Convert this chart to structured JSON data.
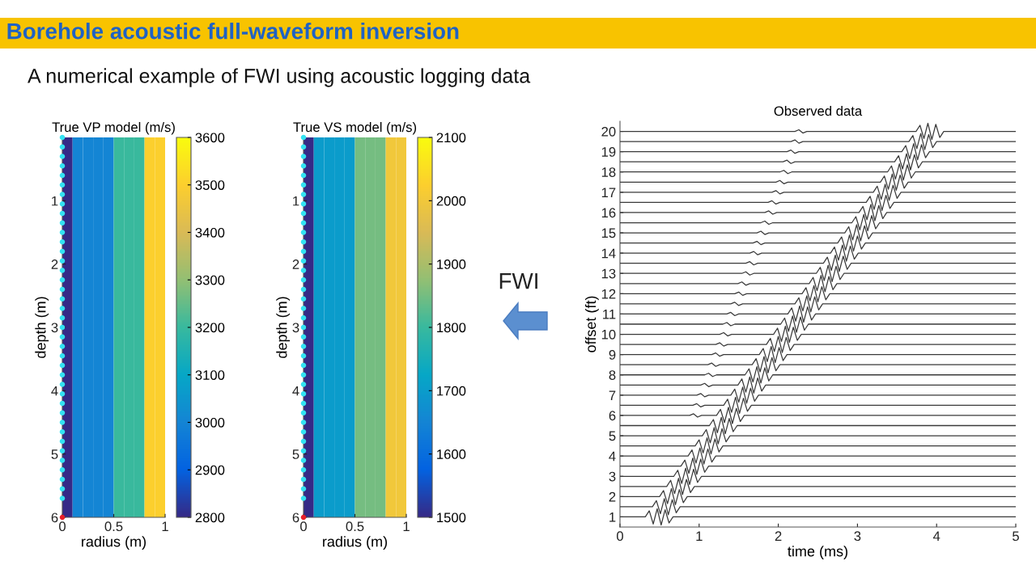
{
  "chart_data": [
    {
      "type": "other",
      "title": "Borehole acoustic full-waveform inversion",
      "subtitle": "A numerical example of FWI using acoustic logging data",
      "annotations": [
        "FWI"
      ]
    },
    {
      "type": "heatmap",
      "title": "True VP model (m/s)",
      "xlabel": "radius (m)",
      "ylabel": "depth (m)",
      "x": [
        0.05,
        0.15,
        0.25,
        0.35,
        0.45,
        0.55,
        0.65,
        0.75,
        0.85,
        0.95
      ],
      "cells": [
        [
          2800,
          3000,
          3000,
          3000,
          3000,
          3200,
          3200,
          3200,
          3500,
          3500
        ]
      ],
      "clim": [
        2800,
        3600
      ],
      "cticks": [
        2800,
        2900,
        3000,
        3100,
        3200,
        3300,
        3400,
        3500,
        3600
      ],
      "xlim": [
        0,
        1
      ],
      "ylim": [
        6,
        0
      ],
      "xticks": [
        0,
        0.5,
        1
      ],
      "yticks": [
        1,
        2,
        3,
        4,
        5,
        6
      ],
      "marker": "circle",
      "series": [
        {
          "type": "scatter",
          "color": "#33e3f2",
          "x": [
            0,
            0,
            0,
            0,
            0,
            0,
            0,
            0,
            0,
            0,
            0,
            0,
            0,
            0,
            0,
            0,
            0,
            0,
            0,
            0,
            0,
            0,
            0,
            0,
            0,
            0,
            0,
            0,
            0,
            0,
            0,
            0,
            0,
            0,
            0,
            0,
            0,
            0,
            0
          ],
          "values": [
            0,
            0.15,
            0.3,
            0.45,
            0.6,
            0.75,
            0.9,
            1.05,
            1.2,
            1.35,
            1.5,
            1.65,
            1.8,
            1.95,
            2.1,
            2.25,
            2.4,
            2.55,
            2.7,
            2.85,
            3,
            3.15,
            3.3,
            3.45,
            3.6,
            3.75,
            3.9,
            4.05,
            4.2,
            4.35,
            4.5,
            4.65,
            4.8,
            4.95,
            5.1,
            5.25,
            5.4,
            5.55,
            5.7
          ]
        },
        {
          "type": "scatter",
          "color": "#e8202a",
          "x": [
            0
          ],
          "values": [
            6
          ]
        }
      ]
    },
    {
      "type": "heatmap",
      "title": "True VS model (m/s)",
      "xlabel": "radius (m)",
      "ylabel": "depth (m)",
      "x": [
        0.05,
        0.15,
        0.25,
        0.35,
        0.45,
        0.55,
        0.65,
        0.75,
        0.85,
        0.95
      ],
      "cells": [
        [
          1500,
          1700,
          1700,
          1700,
          1700,
          1850,
          1850,
          1850,
          2000,
          2000
        ]
      ],
      "clim": [
        1500,
        2100
      ],
      "cticks": [
        1500,
        1600,
        1700,
        1800,
        1900,
        2000,
        2100
      ],
      "xlim": [
        0,
        1
      ],
      "ylim": [
        6,
        0
      ],
      "xticks": [
        0,
        0.5,
        1
      ],
      "yticks": [
        1,
        2,
        3,
        4,
        5,
        6
      ],
      "marker": "circle",
      "series": [
        {
          "type": "scatter",
          "color": "#33e3f2",
          "x": [
            0,
            0,
            0,
            0,
            0,
            0,
            0,
            0,
            0,
            0,
            0,
            0,
            0,
            0,
            0,
            0,
            0,
            0,
            0,
            0,
            0,
            0,
            0,
            0,
            0,
            0,
            0,
            0,
            0,
            0,
            0,
            0,
            0,
            0,
            0,
            0,
            0,
            0,
            0
          ],
          "values": [
            0,
            0.15,
            0.3,
            0.45,
            0.6,
            0.75,
            0.9,
            1.05,
            1.2,
            1.35,
            1.5,
            1.65,
            1.8,
            1.95,
            2.1,
            2.25,
            2.4,
            2.55,
            2.7,
            2.85,
            3,
            3.15,
            3.3,
            3.45,
            3.6,
            3.75,
            3.9,
            4.05,
            4.2,
            4.35,
            4.5,
            4.65,
            4.8,
            4.95,
            5.1,
            5.25,
            5.4,
            5.55,
            5.7
          ]
        },
        {
          "type": "scatter",
          "color": "#e8202a",
          "x": [
            0
          ],
          "values": [
            6
          ]
        }
      ]
    },
    {
      "type": "line",
      "title": "Observed data",
      "xlabel": "time (ms)",
      "ylabel": "offset (ft)",
      "xlim": [
        0,
        5
      ],
      "ylim": [
        0.5,
        20.5
      ],
      "xticks": [
        0,
        1,
        2,
        3,
        4,
        5
      ],
      "yticks": [
        1,
        2,
        3,
        4,
        5,
        6,
        7,
        8,
        9,
        10,
        11,
        12,
        13,
        14,
        15,
        16,
        17,
        18,
        19,
        20
      ],
      "color": "#3a3a3a",
      "marker": "none",
      "line_style": "solid",
      "series": [
        {
          "x": [
            0,
            0.32,
            0.37,
            0.42,
            0.47,
            0.52,
            0.57,
            0.62,
            0.67,
            5
          ],
          "values": [
            1,
            1,
            1.3,
            0.65,
            1.4,
            0.6,
            1.35,
            0.7,
            1,
            1
          ]
        },
        {
          "x": [
            0,
            0.41,
            0.46,
            0.51,
            0.56,
            0.61,
            0.66,
            0.71,
            0.76,
            5
          ],
          "values": [
            1.5,
            1.5,
            1.8,
            1.15,
            1.9,
            1.1,
            1.85,
            1.2,
            1.5,
            1.5
          ]
        },
        {
          "x": [
            0,
            0.5,
            0.55,
            0.6,
            0.65,
            0.7,
            0.75,
            0.8,
            0.85,
            5
          ],
          "values": [
            2,
            2,
            2.3,
            1.65,
            2.4,
            1.6,
            2.35,
            1.7,
            2,
            2
          ]
        },
        {
          "x": [
            0,
            0.59,
            0.64,
            0.69,
            0.74,
            0.79,
            0.84,
            0.89,
            0.94,
            5
          ],
          "values": [
            2.5,
            2.5,
            2.8,
            2.15,
            2.9,
            2.1,
            2.85,
            2.2,
            2.5,
            2.5
          ]
        },
        {
          "x": [
            0,
            0.68,
            0.73,
            0.78,
            0.83,
            0.88,
            0.93,
            0.98,
            1.03,
            5
          ],
          "values": [
            3,
            3,
            3.3,
            2.65,
            3.4,
            2.6,
            3.35,
            2.7,
            3,
            3
          ]
        },
        {
          "x": [
            0,
            0.77,
            0.82,
            0.87,
            0.92,
            0.97,
            1.02,
            1.07,
            1.12,
            5
          ],
          "values": [
            3.5,
            3.5,
            3.8,
            3.15,
            3.9,
            3.1,
            3.85,
            3.2,
            3.5,
            3.5
          ]
        },
        {
          "x": [
            0,
            0.86,
            0.91,
            0.96,
            1.01,
            1.06,
            1.11,
            1.16,
            1.21,
            5
          ],
          "values": [
            4,
            4,
            4.3,
            3.65,
            4.4,
            3.6,
            4.35,
            3.7,
            4,
            4
          ]
        },
        {
          "x": [
            0,
            0.95,
            1,
            1.05,
            1.1,
            1.15,
            1.2,
            1.25,
            1.3,
            5
          ],
          "values": [
            4.5,
            4.5,
            4.8,
            4.15,
            4.9,
            4.1,
            4.85,
            4.2,
            4.5,
            4.5
          ]
        },
        {
          "x": [
            0,
            1.04,
            1.09,
            1.14,
            1.19,
            1.24,
            1.29,
            1.34,
            1.39,
            5
          ],
          "values": [
            5,
            5,
            5.3,
            4.65,
            5.4,
            4.6,
            5.35,
            4.7,
            5,
            5
          ]
        },
        {
          "x": [
            0,
            1.13,
            1.18,
            1.23,
            1.28,
            1.33,
            1.38,
            1.43,
            1.48,
            5
          ],
          "values": [
            5.5,
            5.5,
            5.8,
            5.15,
            5.9,
            5.1,
            5.85,
            5.2,
            5.5,
            5.5
          ]
        },
        {
          "x": [
            0,
            0.88,
            0.93,
            0.98,
            1.03,
            1.22,
            1.27,
            1.32,
            1.37,
            1.42,
            1.47,
            1.52,
            1.57,
            5
          ],
          "values": [
            6,
            6,
            6.08,
            5.92,
            6,
            6,
            6.3,
            5.65,
            6.4,
            5.6,
            6.35,
            5.7,
            6,
            6
          ]
        },
        {
          "x": [
            0,
            0.92,
            0.97,
            1.02,
            1.07,
            1.31,
            1.36,
            1.41,
            1.46,
            1.51,
            1.56,
            1.61,
            1.66,
            5
          ],
          "values": [
            6.5,
            6.5,
            6.58,
            6.42,
            6.5,
            6.5,
            6.8,
            6.15,
            6.9,
            6.1,
            6.85,
            6.2,
            6.5,
            6.5
          ]
        },
        {
          "x": [
            0,
            0.97,
            1.02,
            1.07,
            1.12,
            1.4,
            1.45,
            1.5,
            1.55,
            1.6,
            1.65,
            1.7,
            1.75,
            5
          ],
          "values": [
            7,
            7,
            7.08,
            6.92,
            7,
            7,
            7.3,
            6.65,
            7.4,
            6.6,
            7.35,
            6.7,
            7,
            7
          ]
        },
        {
          "x": [
            0,
            1.02,
            1.07,
            1.12,
            1.17,
            1.49,
            1.54,
            1.59,
            1.64,
            1.69,
            1.74,
            1.79,
            1.84,
            5
          ],
          "values": [
            7.5,
            7.5,
            7.58,
            7.42,
            7.5,
            7.5,
            7.8,
            7.15,
            7.9,
            7.1,
            7.85,
            7.2,
            7.5,
            7.5
          ]
        },
        {
          "x": [
            0,
            1.07,
            1.12,
            1.17,
            1.22,
            1.58,
            1.63,
            1.68,
            1.73,
            1.78,
            1.83,
            1.88,
            1.93,
            5
          ],
          "values": [
            8,
            8,
            8.08,
            7.92,
            8,
            8,
            8.3,
            7.65,
            8.4,
            7.6,
            8.35,
            7.7,
            8,
            8
          ]
        },
        {
          "x": [
            0,
            1.11,
            1.16,
            1.21,
            1.26,
            1.67,
            1.72,
            1.77,
            1.82,
            1.87,
            1.92,
            1.97,
            2.02,
            5
          ],
          "values": [
            8.5,
            8.5,
            8.58,
            8.42,
            8.5,
            8.5,
            8.8,
            8.15,
            8.9,
            8.1,
            8.85,
            8.2,
            8.5,
            8.5
          ]
        },
        {
          "x": [
            0,
            1.16,
            1.21,
            1.26,
            1.31,
            1.76,
            1.81,
            1.86,
            1.91,
            1.96,
            2.01,
            2.06,
            2.11,
            5
          ],
          "values": [
            9,
            9,
            9.08,
            8.92,
            9,
            9,
            9.3,
            8.65,
            9.4,
            8.6,
            9.35,
            8.7,
            9,
            9
          ]
        },
        {
          "x": [
            0,
            1.21,
            1.26,
            1.31,
            1.36,
            1.85,
            1.9,
            1.95,
            2,
            2.05,
            2.1,
            2.15,
            2.2,
            5
          ],
          "values": [
            9.5,
            9.5,
            9.58,
            9.42,
            9.5,
            9.5,
            9.8,
            9.15,
            9.9,
            9.1,
            9.85,
            9.2,
            9.5,
            9.5
          ]
        },
        {
          "x": [
            0,
            1.26,
            1.31,
            1.36,
            1.41,
            1.94,
            1.99,
            2.04,
            2.09,
            2.14,
            2.19,
            2.24,
            2.29,
            5
          ],
          "values": [
            10,
            10,
            10.08,
            9.92,
            10,
            10,
            10.3,
            9.65,
            10.4,
            9.6,
            10.35,
            9.7,
            10,
            10
          ]
        },
        {
          "x": [
            0,
            1.3,
            1.35,
            1.4,
            1.45,
            2.03,
            2.08,
            2.13,
            2.18,
            2.23,
            2.28,
            2.33,
            2.38,
            5
          ],
          "values": [
            10.5,
            10.5,
            10.58,
            10.42,
            10.5,
            10.5,
            10.8,
            10.15,
            10.9,
            10.1,
            10.85,
            10.2,
            10.5,
            10.5
          ]
        },
        {
          "x": [
            0,
            1.35,
            1.4,
            1.45,
            1.5,
            2.12,
            2.17,
            2.22,
            2.27,
            2.32,
            2.37,
            2.42,
            2.47,
            5
          ],
          "values": [
            11,
            11,
            11.08,
            10.92,
            11,
            11,
            11.3,
            10.65,
            11.4,
            10.6,
            11.35,
            10.7,
            11,
            11
          ]
        },
        {
          "x": [
            0,
            1.4,
            1.45,
            1.5,
            1.55,
            2.21,
            2.26,
            2.31,
            2.36,
            2.41,
            2.46,
            2.51,
            2.56,
            5
          ],
          "values": [
            11.5,
            11.5,
            11.58,
            11.42,
            11.5,
            11.5,
            11.8,
            11.15,
            11.9,
            11.1,
            11.85,
            11.2,
            11.5,
            11.5
          ]
        },
        {
          "x": [
            0,
            1.45,
            1.5,
            1.55,
            1.6,
            2.3,
            2.35,
            2.4,
            2.45,
            2.5,
            2.55,
            2.6,
            2.65,
            5
          ],
          "values": [
            12,
            12,
            12.08,
            11.92,
            12,
            12,
            12.3,
            11.65,
            12.4,
            11.6,
            12.35,
            11.7,
            12,
            12
          ]
        },
        {
          "x": [
            0,
            1.49,
            1.54,
            1.59,
            1.64,
            2.39,
            2.44,
            2.49,
            2.54,
            2.59,
            2.64,
            2.69,
            2.74,
            5
          ],
          "values": [
            12.5,
            12.5,
            12.58,
            12.42,
            12.5,
            12.5,
            12.8,
            12.15,
            12.9,
            12.1,
            12.85,
            12.2,
            12.5,
            12.5
          ]
        },
        {
          "x": [
            0,
            1.54,
            1.59,
            1.64,
            1.69,
            2.48,
            2.53,
            2.58,
            2.63,
            2.68,
            2.73,
            2.78,
            2.83,
            5
          ],
          "values": [
            13,
            13,
            13.08,
            12.92,
            13,
            13,
            13.3,
            12.65,
            13.4,
            12.6,
            13.35,
            12.7,
            13,
            13
          ]
        },
        {
          "x": [
            0,
            1.59,
            1.64,
            1.69,
            1.74,
            2.57,
            2.62,
            2.67,
            2.72,
            2.77,
            2.82,
            2.87,
            2.92,
            5
          ],
          "values": [
            13.5,
            13.5,
            13.58,
            13.42,
            13.5,
            13.5,
            13.8,
            13.15,
            13.9,
            13.1,
            13.85,
            13.2,
            13.5,
            13.5
          ]
        },
        {
          "x": [
            0,
            1.64,
            1.69,
            1.74,
            1.79,
            2.66,
            2.71,
            2.76,
            2.81,
            2.86,
            2.91,
            2.96,
            3.01,
            5
          ],
          "values": [
            14,
            14,
            14.08,
            13.92,
            14,
            14,
            14.3,
            13.65,
            14.4,
            13.6,
            14.35,
            13.7,
            14,
            14
          ]
        },
        {
          "x": [
            0,
            1.68,
            1.73,
            1.78,
            1.83,
            2.75,
            2.8,
            2.85,
            2.9,
            2.95,
            3,
            3.05,
            3.1,
            5
          ],
          "values": [
            14.5,
            14.5,
            14.58,
            14.42,
            14.5,
            14.5,
            14.8,
            14.15,
            14.9,
            14.1,
            14.85,
            14.2,
            14.5,
            14.5
          ]
        },
        {
          "x": [
            0,
            1.73,
            1.78,
            1.83,
            1.88,
            2.84,
            2.89,
            2.94,
            2.99,
            3.04,
            3.09,
            3.14,
            3.19,
            5
          ],
          "values": [
            15,
            15,
            15.08,
            14.92,
            15,
            15,
            15.3,
            14.65,
            15.4,
            14.6,
            15.35,
            14.7,
            15,
            15
          ]
        },
        {
          "x": [
            0,
            1.78,
            1.83,
            1.88,
            1.93,
            2.93,
            2.98,
            3.03,
            3.08,
            3.13,
            3.18,
            3.23,
            3.28,
            5
          ],
          "values": [
            15.5,
            15.5,
            15.58,
            15.42,
            15.5,
            15.5,
            15.8,
            15.15,
            15.9,
            15.1,
            15.85,
            15.2,
            15.5,
            15.5
          ]
        },
        {
          "x": [
            0,
            1.83,
            1.88,
            1.93,
            1.98,
            3.02,
            3.07,
            3.12,
            3.17,
            3.22,
            3.27,
            3.32,
            3.37,
            5
          ],
          "values": [
            16,
            16,
            16.08,
            15.92,
            16,
            16,
            16.3,
            15.65,
            16.4,
            15.6,
            16.35,
            15.7,
            16,
            16
          ]
        },
        {
          "x": [
            0,
            1.87,
            1.92,
            1.97,
            2.02,
            3.11,
            3.16,
            3.21,
            3.26,
            3.31,
            3.36,
            3.41,
            3.46,
            5
          ],
          "values": [
            16.5,
            16.5,
            16.58,
            16.42,
            16.5,
            16.5,
            16.8,
            16.15,
            16.9,
            16.1,
            16.85,
            16.2,
            16.5,
            16.5
          ]
        },
        {
          "x": [
            0,
            1.92,
            1.97,
            2.02,
            2.07,
            3.2,
            3.25,
            3.3,
            3.35,
            3.4,
            3.45,
            3.5,
            3.55,
            5
          ],
          "values": [
            17,
            17,
            17.08,
            16.92,
            17,
            17,
            17.3,
            16.65,
            17.4,
            16.6,
            17.35,
            16.7,
            17,
            17
          ]
        },
        {
          "x": [
            0,
            1.97,
            2.02,
            2.07,
            2.12,
            3.29,
            3.34,
            3.39,
            3.44,
            3.49,
            3.54,
            3.59,
            3.64,
            5
          ],
          "values": [
            17.5,
            17.5,
            17.58,
            17.42,
            17.5,
            17.5,
            17.8,
            17.15,
            17.9,
            17.1,
            17.85,
            17.2,
            17.5,
            17.5
          ]
        },
        {
          "x": [
            0,
            2.02,
            2.07,
            2.12,
            2.17,
            3.38,
            3.43,
            3.48,
            3.53,
            3.58,
            3.63,
            3.68,
            3.73,
            5
          ],
          "values": [
            18,
            18,
            18.08,
            17.92,
            18,
            18,
            18.3,
            17.65,
            18.4,
            17.6,
            18.35,
            17.7,
            18,
            18
          ]
        },
        {
          "x": [
            0,
            2.06,
            2.11,
            2.16,
            2.21,
            3.47,
            3.52,
            3.57,
            3.62,
            3.67,
            3.72,
            3.77,
            3.82,
            5
          ],
          "values": [
            18.5,
            18.5,
            18.58,
            18.42,
            18.5,
            18.5,
            18.8,
            18.15,
            18.9,
            18.1,
            18.85,
            18.2,
            18.5,
            18.5
          ]
        },
        {
          "x": [
            0,
            2.11,
            2.16,
            2.21,
            2.26,
            3.56,
            3.61,
            3.66,
            3.71,
            3.76,
            3.81,
            3.86,
            3.91,
            5
          ],
          "values": [
            19,
            19,
            19.08,
            18.92,
            19,
            19,
            19.3,
            18.65,
            19.4,
            18.6,
            19.35,
            18.7,
            19,
            19
          ]
        },
        {
          "x": [
            0,
            2.16,
            2.21,
            2.26,
            2.31,
            3.65,
            3.7,
            3.75,
            3.8,
            3.85,
            3.9,
            3.95,
            4,
            5
          ],
          "values": [
            19.5,
            19.5,
            19.58,
            19.42,
            19.5,
            19.5,
            19.8,
            19.15,
            19.9,
            19.1,
            19.85,
            19.2,
            19.5,
            19.5
          ]
        },
        {
          "x": [
            0,
            2.21,
            2.26,
            2.31,
            2.36,
            3.74,
            3.79,
            3.84,
            3.89,
            3.94,
            3.99,
            4.04,
            4.09,
            5
          ],
          "values": [
            20,
            20,
            20.08,
            19.92,
            20,
            20,
            20.3,
            19.65,
            20.4,
            19.6,
            20.35,
            19.7,
            20,
            20
          ]
        }
      ]
    }
  ]
}
